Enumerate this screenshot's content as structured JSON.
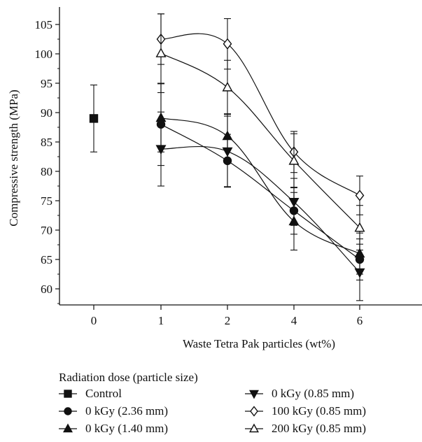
{
  "chart_data": {
    "type": "line",
    "xlabel": "Waste Tetra Pak particles (wt%)",
    "ylabel": "Compressive strength (MPa)",
    "categories": [
      "0",
      "1",
      "2",
      "4",
      "6"
    ],
    "ylim": [
      57,
      108
    ],
    "yticks": [
      60,
      65,
      70,
      75,
      80,
      85,
      90,
      95,
      100,
      105
    ],
    "grid": false,
    "legend_title": "Radiation dose (particle size)",
    "legend_position": "bottom",
    "series": [
      {
        "name": "Control",
        "marker": "square-filled",
        "points": [
          {
            "x": "0",
            "y": 89.0,
            "err": 5.7
          }
        ],
        "curve": false
      },
      {
        "name": "0 kGy (0.85 mm)",
        "marker": "triangle-down-filled",
        "points": [
          {
            "x": "1",
            "y": 83.8,
            "err": 6.3
          },
          {
            "x": "2",
            "y": 83.4,
            "err": 6.0
          },
          {
            "x": "4",
            "y": 74.8,
            "err": 4.0
          },
          {
            "x": "6",
            "y": 62.8,
            "err": 4.8
          }
        ],
        "curve": true
      },
      {
        "name": "0 kGy (2.36 mm)",
        "marker": "circle-filled",
        "points": [
          {
            "x": "1",
            "y": 88.0,
            "err": 7.0
          },
          {
            "x": "2",
            "y": 81.8,
            "err": 4.5
          },
          {
            "x": "4",
            "y": 73.3,
            "err": 4.0
          },
          {
            "x": "6",
            "y": 65.0,
            "err": 3.5
          }
        ],
        "curve": true
      },
      {
        "name": "100 kGy (0.85 mm)",
        "marker": "diamond-open",
        "points": [
          {
            "x": "1",
            "y": 102.5,
            "err": 4.3
          },
          {
            "x": "2",
            "y": 101.7,
            "err": 4.3
          },
          {
            "x": "4",
            "y": 83.3,
            "err": 3.5
          },
          {
            "x": "6",
            "y": 75.9,
            "err": 3.3
          }
        ],
        "curve": true
      },
      {
        "name": "0 kGy (1.40 mm)",
        "marker": "triangle-up-filled",
        "points": [
          {
            "x": "1",
            "y": 89.1,
            "err": 5.8
          },
          {
            "x": "2",
            "y": 86.0,
            "err": 3.8
          },
          {
            "x": "4",
            "y": 71.5,
            "err": 4.9
          },
          {
            "x": "6",
            "y": 66.0,
            "err": 3.5
          }
        ],
        "curve": true
      },
      {
        "name": "200 kGy (0.85 mm)",
        "marker": "triangle-up-open",
        "points": [
          {
            "x": "1",
            "y": 100.1,
            "err": 6.7
          },
          {
            "x": "2",
            "y": 94.3,
            "err": 4.6
          },
          {
            "x": "4",
            "y": 81.8,
            "err": 4.6
          },
          {
            "x": "6",
            "y": 70.4,
            "err": 3.8
          }
        ],
        "curve": true
      }
    ]
  }
}
